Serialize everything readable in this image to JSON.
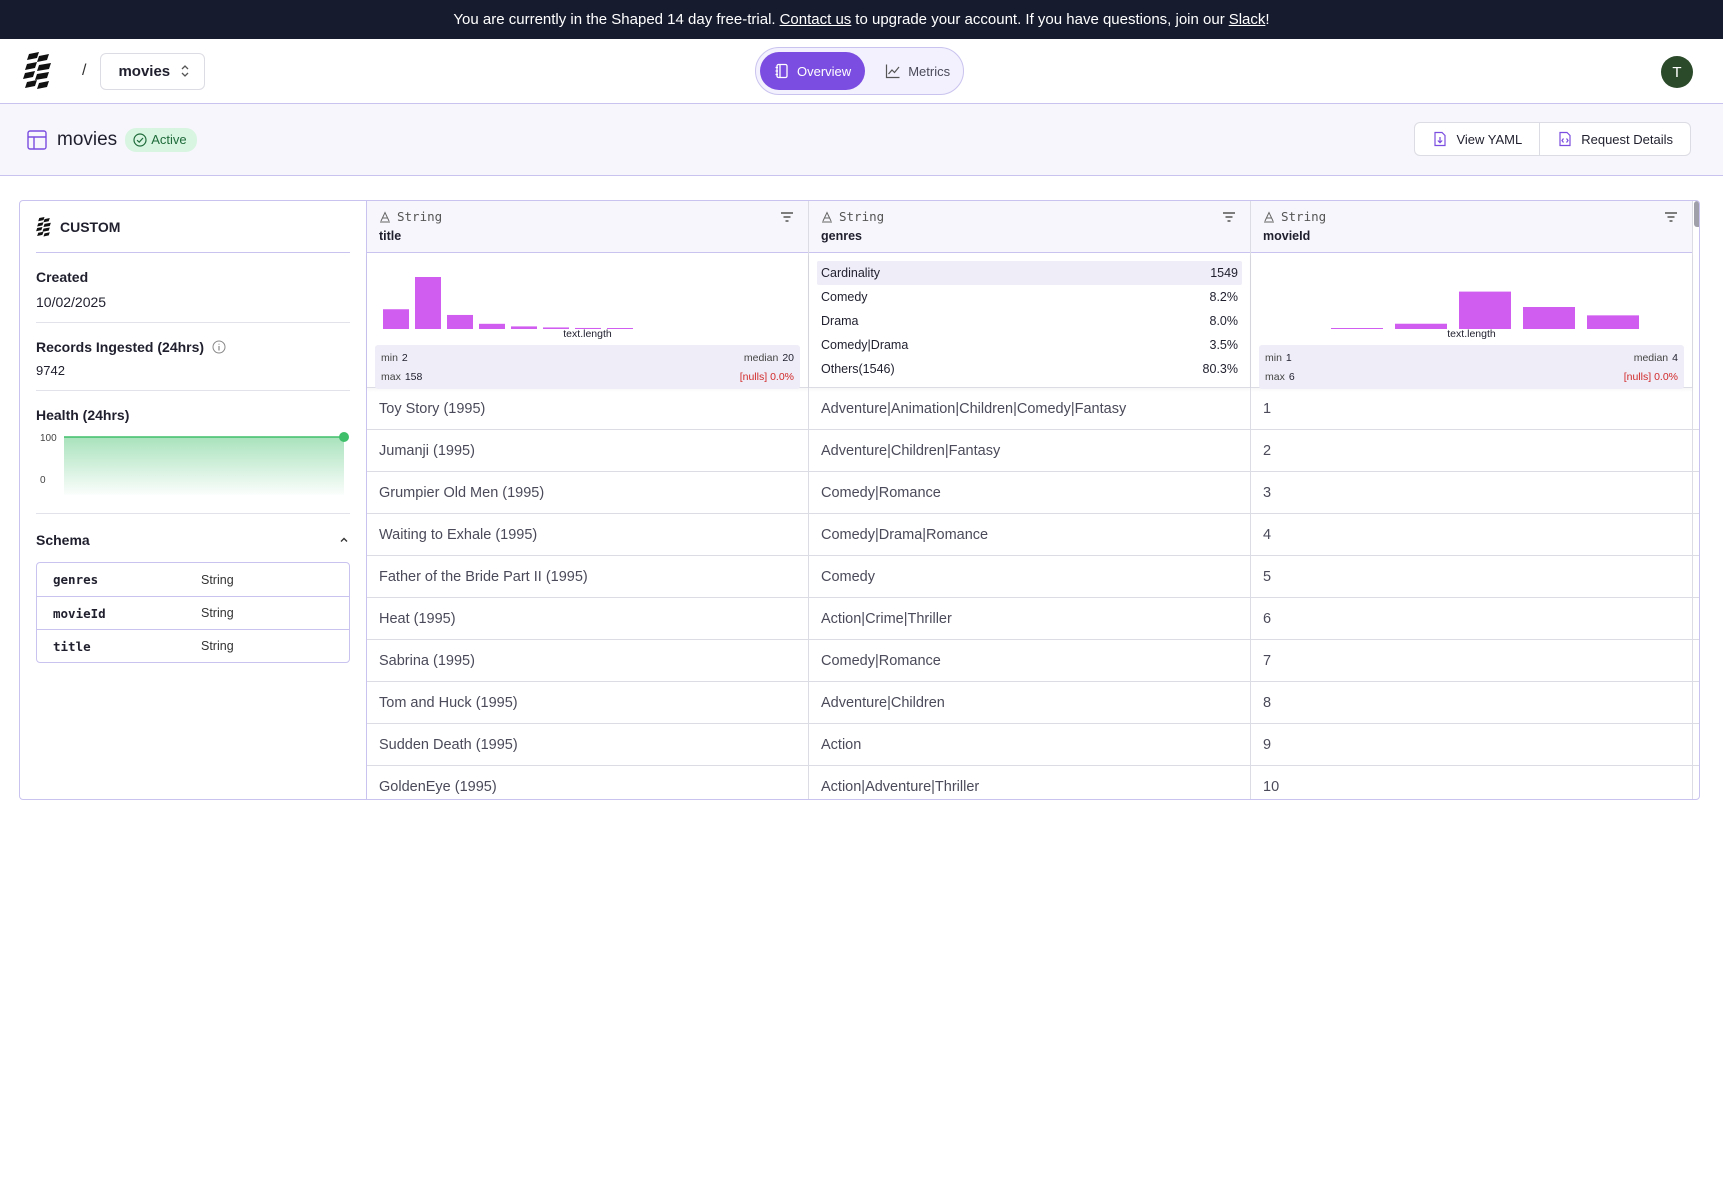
{
  "banner": {
    "text_1": "You are currently in the Shaped 14 day free-trial.",
    "link_contact": "Contact us",
    "text_2": "to upgrade your account. If you have questions, join our",
    "link_slack": "Slack",
    "text_3": "!"
  },
  "header": {
    "breadcrumb_sep": "/",
    "dataset": "movies",
    "tabs": [
      {
        "label": "Overview",
        "active": true
      },
      {
        "label": "Metrics",
        "active": false
      }
    ],
    "avatar_initial": "T"
  },
  "titlebar": {
    "title": "movies",
    "status": "Active",
    "view_yaml": "View YAML",
    "request_details": "Request Details"
  },
  "sidebar": {
    "source": "CUSTOM",
    "created_label": "Created",
    "created_value": "10/02/2025",
    "records_label": "Records Ingested (24hrs)",
    "records_value": "9742",
    "health_label": "Health (24hrs)",
    "health_axis": [
      "100",
      "0"
    ],
    "health_value": 100,
    "schema_label": "Schema",
    "schema": [
      {
        "field": "genres",
        "type": "String"
      },
      {
        "field": "movieId",
        "type": "String"
      },
      {
        "field": "title",
        "type": "String"
      }
    ]
  },
  "columns": [
    {
      "type": "String",
      "name": "title",
      "hist_label": "text.length",
      "hist_values": [
        0.38,
        1.0,
        0.27,
        0.1,
        0.05,
        0.03,
        0.02,
        0.01
      ],
      "min_label": "min",
      "min": "2",
      "median_label": "median",
      "median": "20",
      "max_label": "max",
      "max": "158",
      "nulls_label": "[nulls]",
      "nulls": "0.0%"
    },
    {
      "type": "String",
      "name": "genres",
      "cardinality": [
        {
          "label": "Cardinality",
          "value": "1549"
        },
        {
          "label": "Comedy",
          "value": "8.2%"
        },
        {
          "label": "Drama",
          "value": "8.0%"
        },
        {
          "label": "Comedy|Drama",
          "value": "3.5%"
        },
        {
          "label": "Others(1546)",
          "value": "80.3%"
        }
      ]
    },
    {
      "type": "String",
      "name": "movieId",
      "hist_label": "text.length",
      "hist_values": [
        0.0,
        0.01,
        0.12,
        0.85,
        0.5,
        0.31
      ],
      "min_label": "min",
      "min": "1",
      "median_label": "median",
      "median": "4",
      "max_label": "max",
      "max": "6",
      "nulls_label": "[nulls]",
      "nulls": "0.0%"
    }
  ],
  "rows": [
    [
      "Toy Story (1995)",
      "Adventure|Animation|Children|Comedy|Fantasy",
      "1"
    ],
    [
      "Jumanji (1995)",
      "Adventure|Children|Fantasy",
      "2"
    ],
    [
      "Grumpier Old Men (1995)",
      "Comedy|Romance",
      "3"
    ],
    [
      "Waiting to Exhale (1995)",
      "Comedy|Drama|Romance",
      "4"
    ],
    [
      "Father of the Bride Part II (1995)",
      "Comedy",
      "5"
    ],
    [
      "Heat (1995)",
      "Action|Crime|Thriller",
      "6"
    ],
    [
      "Sabrina (1995)",
      "Comedy|Romance",
      "7"
    ],
    [
      "Tom and Huck (1995)",
      "Adventure|Children",
      "8"
    ],
    [
      "Sudden Death (1995)",
      "Action",
      "9"
    ],
    [
      "GoldenEye (1995)",
      "Action|Adventure|Thriller",
      "10"
    ]
  ],
  "colors": {
    "accent": "#7b4de0",
    "bar": "#d05cf0",
    "health": "#3fbf6a",
    "banner": "#161b2e"
  }
}
